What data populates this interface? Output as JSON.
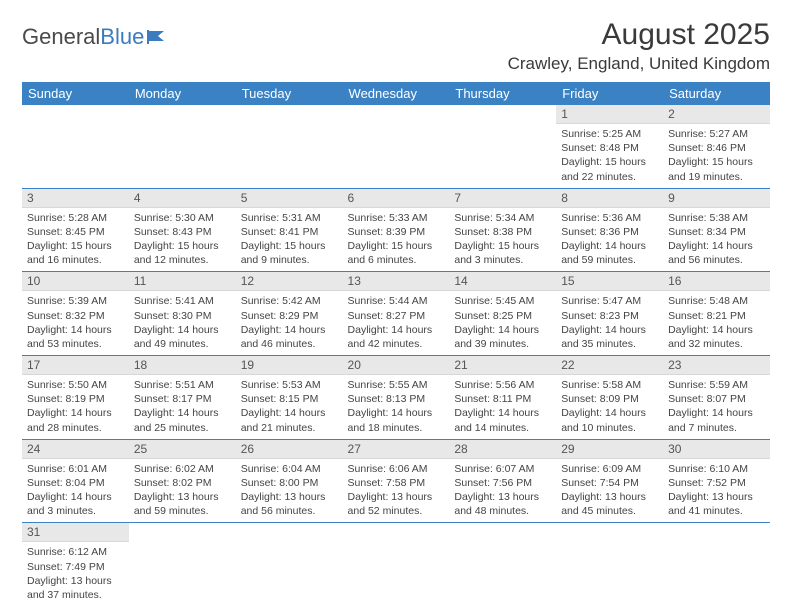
{
  "logo": {
    "text1": "General",
    "text2": "Blue"
  },
  "title": "August 2025",
  "location": "Crawley, England, United Kingdom",
  "colors": {
    "header_bg": "#3b82c4",
    "header_fg": "#ffffff",
    "daynum_bg": "#e8e8e8",
    "border": "#3b82c4"
  },
  "day_labels": [
    "Sunday",
    "Monday",
    "Tuesday",
    "Wednesday",
    "Thursday",
    "Friday",
    "Saturday"
  ],
  "weeks": [
    [
      null,
      null,
      null,
      null,
      null,
      {
        "n": "1",
        "sr": "5:25 AM",
        "ss": "8:48 PM",
        "dl": "15 hours and 22 minutes."
      },
      {
        "n": "2",
        "sr": "5:27 AM",
        "ss": "8:46 PM",
        "dl": "15 hours and 19 minutes."
      }
    ],
    [
      {
        "n": "3",
        "sr": "5:28 AM",
        "ss": "8:45 PM",
        "dl": "15 hours and 16 minutes."
      },
      {
        "n": "4",
        "sr": "5:30 AM",
        "ss": "8:43 PM",
        "dl": "15 hours and 12 minutes."
      },
      {
        "n": "5",
        "sr": "5:31 AM",
        "ss": "8:41 PM",
        "dl": "15 hours and 9 minutes."
      },
      {
        "n": "6",
        "sr": "5:33 AM",
        "ss": "8:39 PM",
        "dl": "15 hours and 6 minutes."
      },
      {
        "n": "7",
        "sr": "5:34 AM",
        "ss": "8:38 PM",
        "dl": "15 hours and 3 minutes."
      },
      {
        "n": "8",
        "sr": "5:36 AM",
        "ss": "8:36 PM",
        "dl": "14 hours and 59 minutes."
      },
      {
        "n": "9",
        "sr": "5:38 AM",
        "ss": "8:34 PM",
        "dl": "14 hours and 56 minutes."
      }
    ],
    [
      {
        "n": "10",
        "sr": "5:39 AM",
        "ss": "8:32 PM",
        "dl": "14 hours and 53 minutes."
      },
      {
        "n": "11",
        "sr": "5:41 AM",
        "ss": "8:30 PM",
        "dl": "14 hours and 49 minutes."
      },
      {
        "n": "12",
        "sr": "5:42 AM",
        "ss": "8:29 PM",
        "dl": "14 hours and 46 minutes."
      },
      {
        "n": "13",
        "sr": "5:44 AM",
        "ss": "8:27 PM",
        "dl": "14 hours and 42 minutes."
      },
      {
        "n": "14",
        "sr": "5:45 AM",
        "ss": "8:25 PM",
        "dl": "14 hours and 39 minutes."
      },
      {
        "n": "15",
        "sr": "5:47 AM",
        "ss": "8:23 PM",
        "dl": "14 hours and 35 minutes."
      },
      {
        "n": "16",
        "sr": "5:48 AM",
        "ss": "8:21 PM",
        "dl": "14 hours and 32 minutes."
      }
    ],
    [
      {
        "n": "17",
        "sr": "5:50 AM",
        "ss": "8:19 PM",
        "dl": "14 hours and 28 minutes."
      },
      {
        "n": "18",
        "sr": "5:51 AM",
        "ss": "8:17 PM",
        "dl": "14 hours and 25 minutes."
      },
      {
        "n": "19",
        "sr": "5:53 AM",
        "ss": "8:15 PM",
        "dl": "14 hours and 21 minutes."
      },
      {
        "n": "20",
        "sr": "5:55 AM",
        "ss": "8:13 PM",
        "dl": "14 hours and 18 minutes."
      },
      {
        "n": "21",
        "sr": "5:56 AM",
        "ss": "8:11 PM",
        "dl": "14 hours and 14 minutes."
      },
      {
        "n": "22",
        "sr": "5:58 AM",
        "ss": "8:09 PM",
        "dl": "14 hours and 10 minutes."
      },
      {
        "n": "23",
        "sr": "5:59 AM",
        "ss": "8:07 PM",
        "dl": "14 hours and 7 minutes."
      }
    ],
    [
      {
        "n": "24",
        "sr": "6:01 AM",
        "ss": "8:04 PM",
        "dl": "14 hours and 3 minutes."
      },
      {
        "n": "25",
        "sr": "6:02 AM",
        "ss": "8:02 PM",
        "dl": "13 hours and 59 minutes."
      },
      {
        "n": "26",
        "sr": "6:04 AM",
        "ss": "8:00 PM",
        "dl": "13 hours and 56 minutes."
      },
      {
        "n": "27",
        "sr": "6:06 AM",
        "ss": "7:58 PM",
        "dl": "13 hours and 52 minutes."
      },
      {
        "n": "28",
        "sr": "6:07 AM",
        "ss": "7:56 PM",
        "dl": "13 hours and 48 minutes."
      },
      {
        "n": "29",
        "sr": "6:09 AM",
        "ss": "7:54 PM",
        "dl": "13 hours and 45 minutes."
      },
      {
        "n": "30",
        "sr": "6:10 AM",
        "ss": "7:52 PM",
        "dl": "13 hours and 41 minutes."
      }
    ],
    [
      {
        "n": "31",
        "sr": "6:12 AM",
        "ss": "7:49 PM",
        "dl": "13 hours and 37 minutes."
      },
      null,
      null,
      null,
      null,
      null,
      null
    ]
  ],
  "labels": {
    "sunrise": "Sunrise:",
    "sunset": "Sunset:",
    "daylight": "Daylight:"
  }
}
